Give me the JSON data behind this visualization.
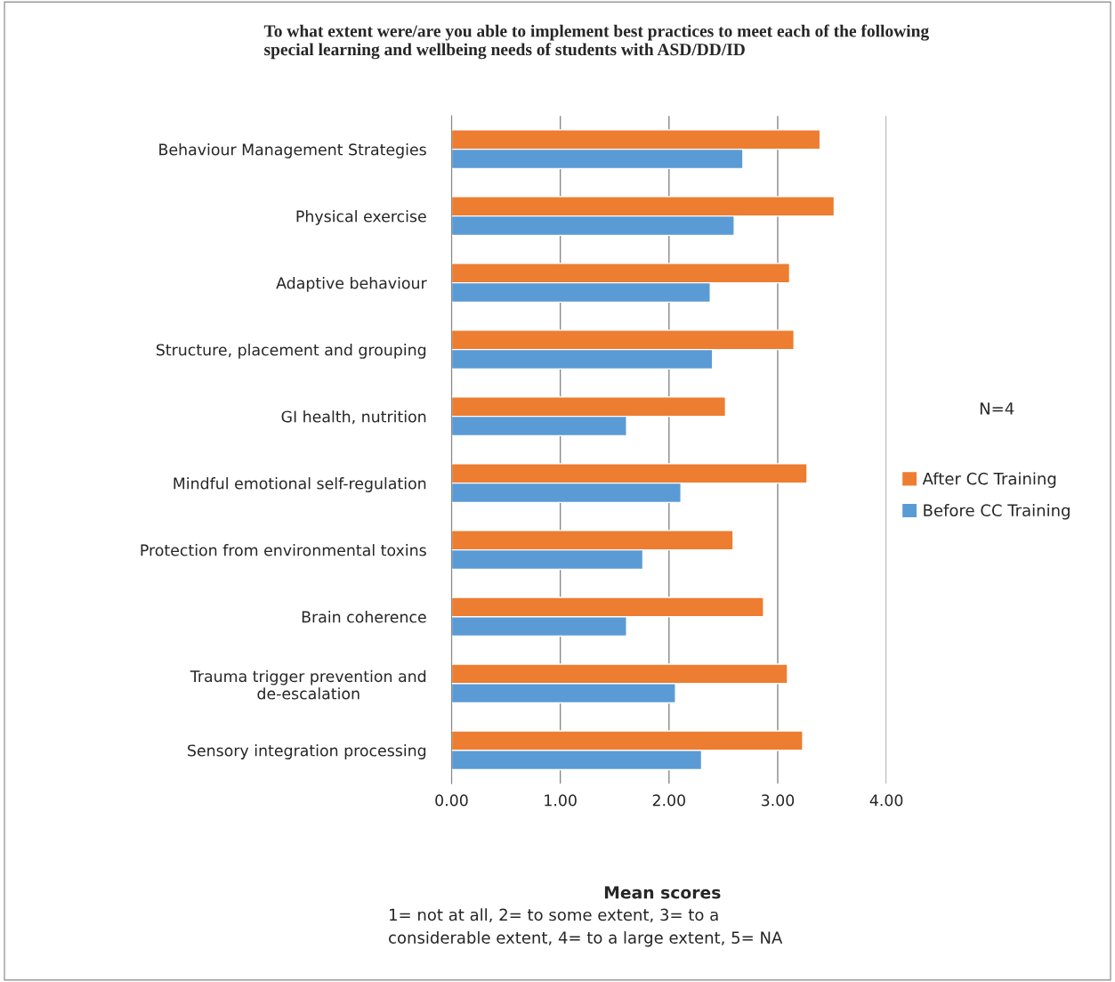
{
  "chart_data": {
    "type": "bar",
    "orientation": "horizontal",
    "title": "To what extent were/are you able to implement best practices to meet each of the following special learning and wellbeing needs of students with ASD/DD/ID",
    "xlabel": "Mean scores",
    "categories": [
      "Behaviour Management Strategies",
      "Physical exercise",
      "Adaptive behaviour",
      "Structure, placement and grouping",
      "GI health, nutrition",
      "Mindful emotional self-regulation",
      "Protection from environmental toxins",
      "Brain coherence",
      "Trauma trigger prevention and de-escalation",
      "Sensory integration processing"
    ],
    "series": [
      {
        "name": "After CC Training",
        "color": "#ed7d31",
        "values": [
          3.39,
          3.52,
          3.11,
          3.15,
          2.52,
          3.27,
          2.59,
          2.87,
          3.09,
          3.23
        ]
      },
      {
        "name": "Before CC Training",
        "color": "#5b9bd5",
        "values": [
          2.68,
          2.6,
          2.38,
          2.4,
          1.61,
          2.11,
          1.76,
          1.61,
          2.06,
          2.3
        ]
      }
    ],
    "xlim": [
      0,
      4
    ],
    "xticks": [
      {
        "value": 0,
        "label": "0.00"
      },
      {
        "value": 1,
        "label": "1.00"
      },
      {
        "value": 2,
        "label": "2.00"
      },
      {
        "value": 3,
        "label": "3.00"
      },
      {
        "value": 4,
        "label": "4.00"
      }
    ],
    "grid": "x",
    "legend": "right",
    "annotations": [
      "N=4",
      "1= not at all, 2= to some extent, 3= to a considerable extent, 4= to a large extent, 5= NA"
    ]
  }
}
